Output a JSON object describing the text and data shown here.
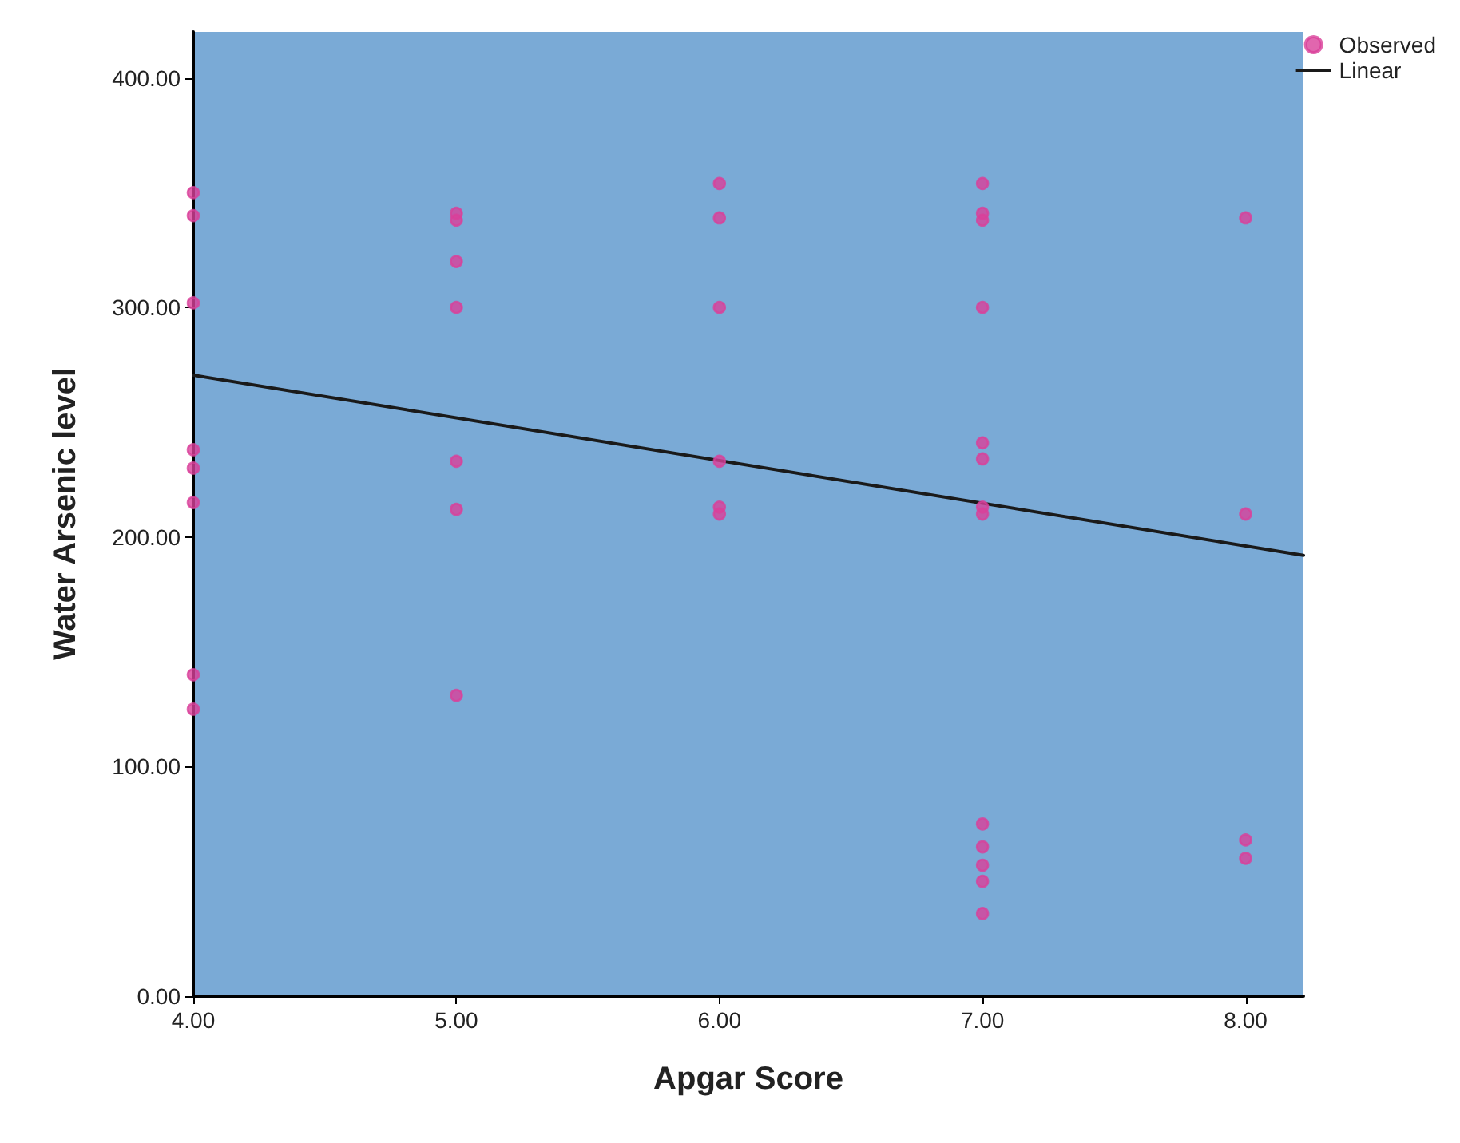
{
  "chart_data": {
    "type": "scatter",
    "xlabel": "Apgar Score",
    "ylabel": "Water Arsenic level",
    "xlim": [
      4,
      8.22
    ],
    "ylim": [
      0,
      420
    ],
    "xticks": [
      {
        "value": 4,
        "label": "4.00"
      },
      {
        "value": 5,
        "label": "5.00"
      },
      {
        "value": 6,
        "label": "6.00"
      },
      {
        "value": 7,
        "label": "7.00"
      },
      {
        "value": 8,
        "label": "8.00"
      }
    ],
    "yticks": [
      {
        "value": 0,
        "label": "0.00"
      },
      {
        "value": 100,
        "label": "100.00"
      },
      {
        "value": 200,
        "label": "200.00"
      },
      {
        "value": 300,
        "label": "300.00"
      },
      {
        "value": 400,
        "label": "400.00"
      }
    ],
    "grid": false,
    "legend": "top right",
    "marker": "circle",
    "series": [
      {
        "name": "Observed",
        "color": "#d9409a",
        "x": [
          4,
          4,
          4,
          4,
          4,
          4,
          4,
          4,
          5,
          5,
          5,
          5,
          5,
          5,
          5,
          6,
          6,
          6,
          6,
          6,
          6,
          7,
          7,
          7,
          7,
          7,
          7,
          7,
          7,
          7,
          7,
          7,
          7,
          7,
          8,
          8,
          8,
          8
        ],
        "values": [
          350,
          340,
          302,
          238,
          230,
          215,
          140,
          125,
          341,
          338,
          320,
          300,
          233,
          212,
          131,
          354,
          339,
          300,
          233,
          213,
          210,
          354,
          341,
          338,
          300,
          241,
          234,
          213,
          210,
          75,
          65,
          57,
          50,
          36,
          339,
          210,
          68,
          60
        ]
      },
      {
        "name": "Linear",
        "type": "line",
        "color": "#1a1a1a",
        "line_style": "solid",
        "marker": "none",
        "x": [
          4,
          8.22
        ],
        "values": [
          270.5,
          192
        ]
      }
    ]
  }
}
